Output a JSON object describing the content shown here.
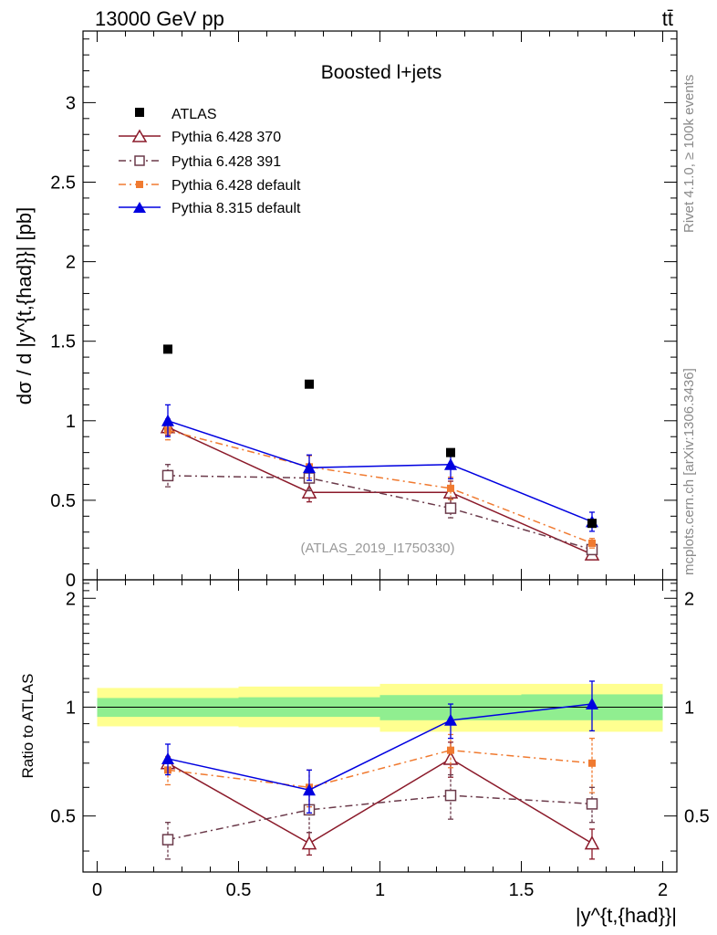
{
  "header": {
    "energy_label": "13000 GeV pp",
    "process_label": "tt̄"
  },
  "side_labels": {
    "rivet": "Rivet 4.1.0, ≥ 100k events",
    "mcplots": "mcplots.cern.ch [arXiv:1306.3436]"
  },
  "colors": {
    "data": "#000000",
    "py6_370": "#8b1a2a",
    "py6_391": "#6b3a4a",
    "py6_default": "#f07a30",
    "py8_default": "#0000e0",
    "band_inner": "#90ee90",
    "band_outer": "#ffff90"
  },
  "chart_data": [
    {
      "type": "scatter",
      "title": "Boosted l+jets",
      "ylabel": "dσ / d |y^{t,{had}}| [pb]",
      "xlabel": "|y^{t,{had}}|",
      "analysis_id": "(ATLAS_2019_I1750330)",
      "xlim": [
        -0.05,
        2.05
      ],
      "ylim": [
        0,
        3.45
      ],
      "yticks": [
        0,
        0.5,
        1,
        1.5,
        2,
        2.5,
        3
      ],
      "ytick_labels": [
        "0",
        "0.5",
        "1",
        "1.5",
        "2",
        "2.5",
        "3"
      ],
      "x": [
        0.25,
        0.75,
        1.25,
        1.75
      ],
      "bin_edges": [
        0,
        0.5,
        1.0,
        1.5,
        2.0
      ],
      "series": [
        {
          "name": "ATLAS",
          "key": "data",
          "values": [
            1.45,
            1.23,
            0.8,
            0.355
          ],
          "errors": [
            0.0,
            0.0,
            0.0,
            0.0
          ],
          "marker": "filled-square",
          "line": "none"
        },
        {
          "name": "Pythia 6.428 370",
          "key": "py6_370",
          "values": [
            0.96,
            0.55,
            0.55,
            0.16
          ],
          "errors": [
            0.05,
            0.06,
            0.07,
            0.02
          ],
          "marker": "open-triangle",
          "line": "solid"
        },
        {
          "name": "Pythia 6.428 391",
          "key": "py6_391",
          "values": [
            0.655,
            0.64,
            0.45,
            0.19
          ],
          "errors": [
            0.07,
            0.08,
            0.06,
            0.02
          ],
          "marker": "open-square",
          "line": "dashdot"
        },
        {
          "name": "Pythia 6.428 default",
          "key": "py6_default",
          "values": [
            0.94,
            0.71,
            0.575,
            0.23
          ],
          "errors": [
            0.06,
            0.07,
            0.07,
            0.03
          ],
          "marker": "filled-small-square",
          "line": "dashdot"
        },
        {
          "name": "Pythia 8.315 default",
          "key": "py8_default",
          "values": [
            1.0,
            0.705,
            0.725,
            0.365
          ],
          "errors": [
            0.1,
            0.08,
            0.09,
            0.06
          ],
          "marker": "filled-triangle",
          "line": "solid"
        }
      ]
    },
    {
      "type": "line",
      "ylabel": "Ratio to ATLAS",
      "ylim": [
        0.35,
        2.25
      ],
      "yscale": "log",
      "yticks": [
        0.5,
        1,
        2
      ],
      "ytick_labels": [
        "0.5",
        "1",
        "2"
      ],
      "xticks": [
        0,
        0.5,
        1,
        1.5,
        2
      ],
      "xtick_labels": [
        "0",
        "0.5",
        "1",
        "1.5",
        "2"
      ],
      "x": [
        0.25,
        0.75,
        1.25,
        1.75
      ],
      "reference_line": 1.0,
      "uncertainty_bands": [
        {
          "x0": 0.0,
          "x1": 0.5,
          "inner": [
            0.94,
            1.06
          ],
          "outer": [
            0.885,
            1.13
          ]
        },
        {
          "x0": 0.5,
          "x1": 1.0,
          "inner": [
            0.94,
            1.065
          ],
          "outer": [
            0.88,
            1.14
          ]
        },
        {
          "x0": 1.0,
          "x1": 1.5,
          "inner": [
            0.92,
            1.08
          ],
          "outer": [
            0.855,
            1.16
          ]
        },
        {
          "x0": 1.5,
          "x1": 2.0,
          "inner": [
            0.92,
            1.085
          ],
          "outer": [
            0.855,
            1.16
          ]
        }
      ],
      "series": [
        {
          "name": "Pythia 6.428 370",
          "key": "py6_370",
          "values": [
            0.7,
            0.42,
            0.72,
            0.42
          ],
          "errors": [
            0.03,
            0.03,
            0.08,
            0.04
          ]
        },
        {
          "name": "Pythia 6.428 391",
          "key": "py6_391",
          "values": [
            0.43,
            0.52,
            0.57,
            0.54
          ],
          "errors": [
            0.05,
            0.07,
            0.08,
            0.06
          ]
        },
        {
          "name": "Pythia 6.428 default",
          "key": "py6_default",
          "values": [
            0.67,
            0.6,
            0.76,
            0.7
          ],
          "errors": [
            0.06,
            0.07,
            0.08,
            0.12
          ]
        },
        {
          "name": "Pythia 8.315 default",
          "key": "py8_default",
          "values": [
            0.72,
            0.59,
            0.92,
            1.02
          ],
          "errors": [
            0.07,
            0.08,
            0.1,
            0.16
          ]
        }
      ]
    }
  ]
}
